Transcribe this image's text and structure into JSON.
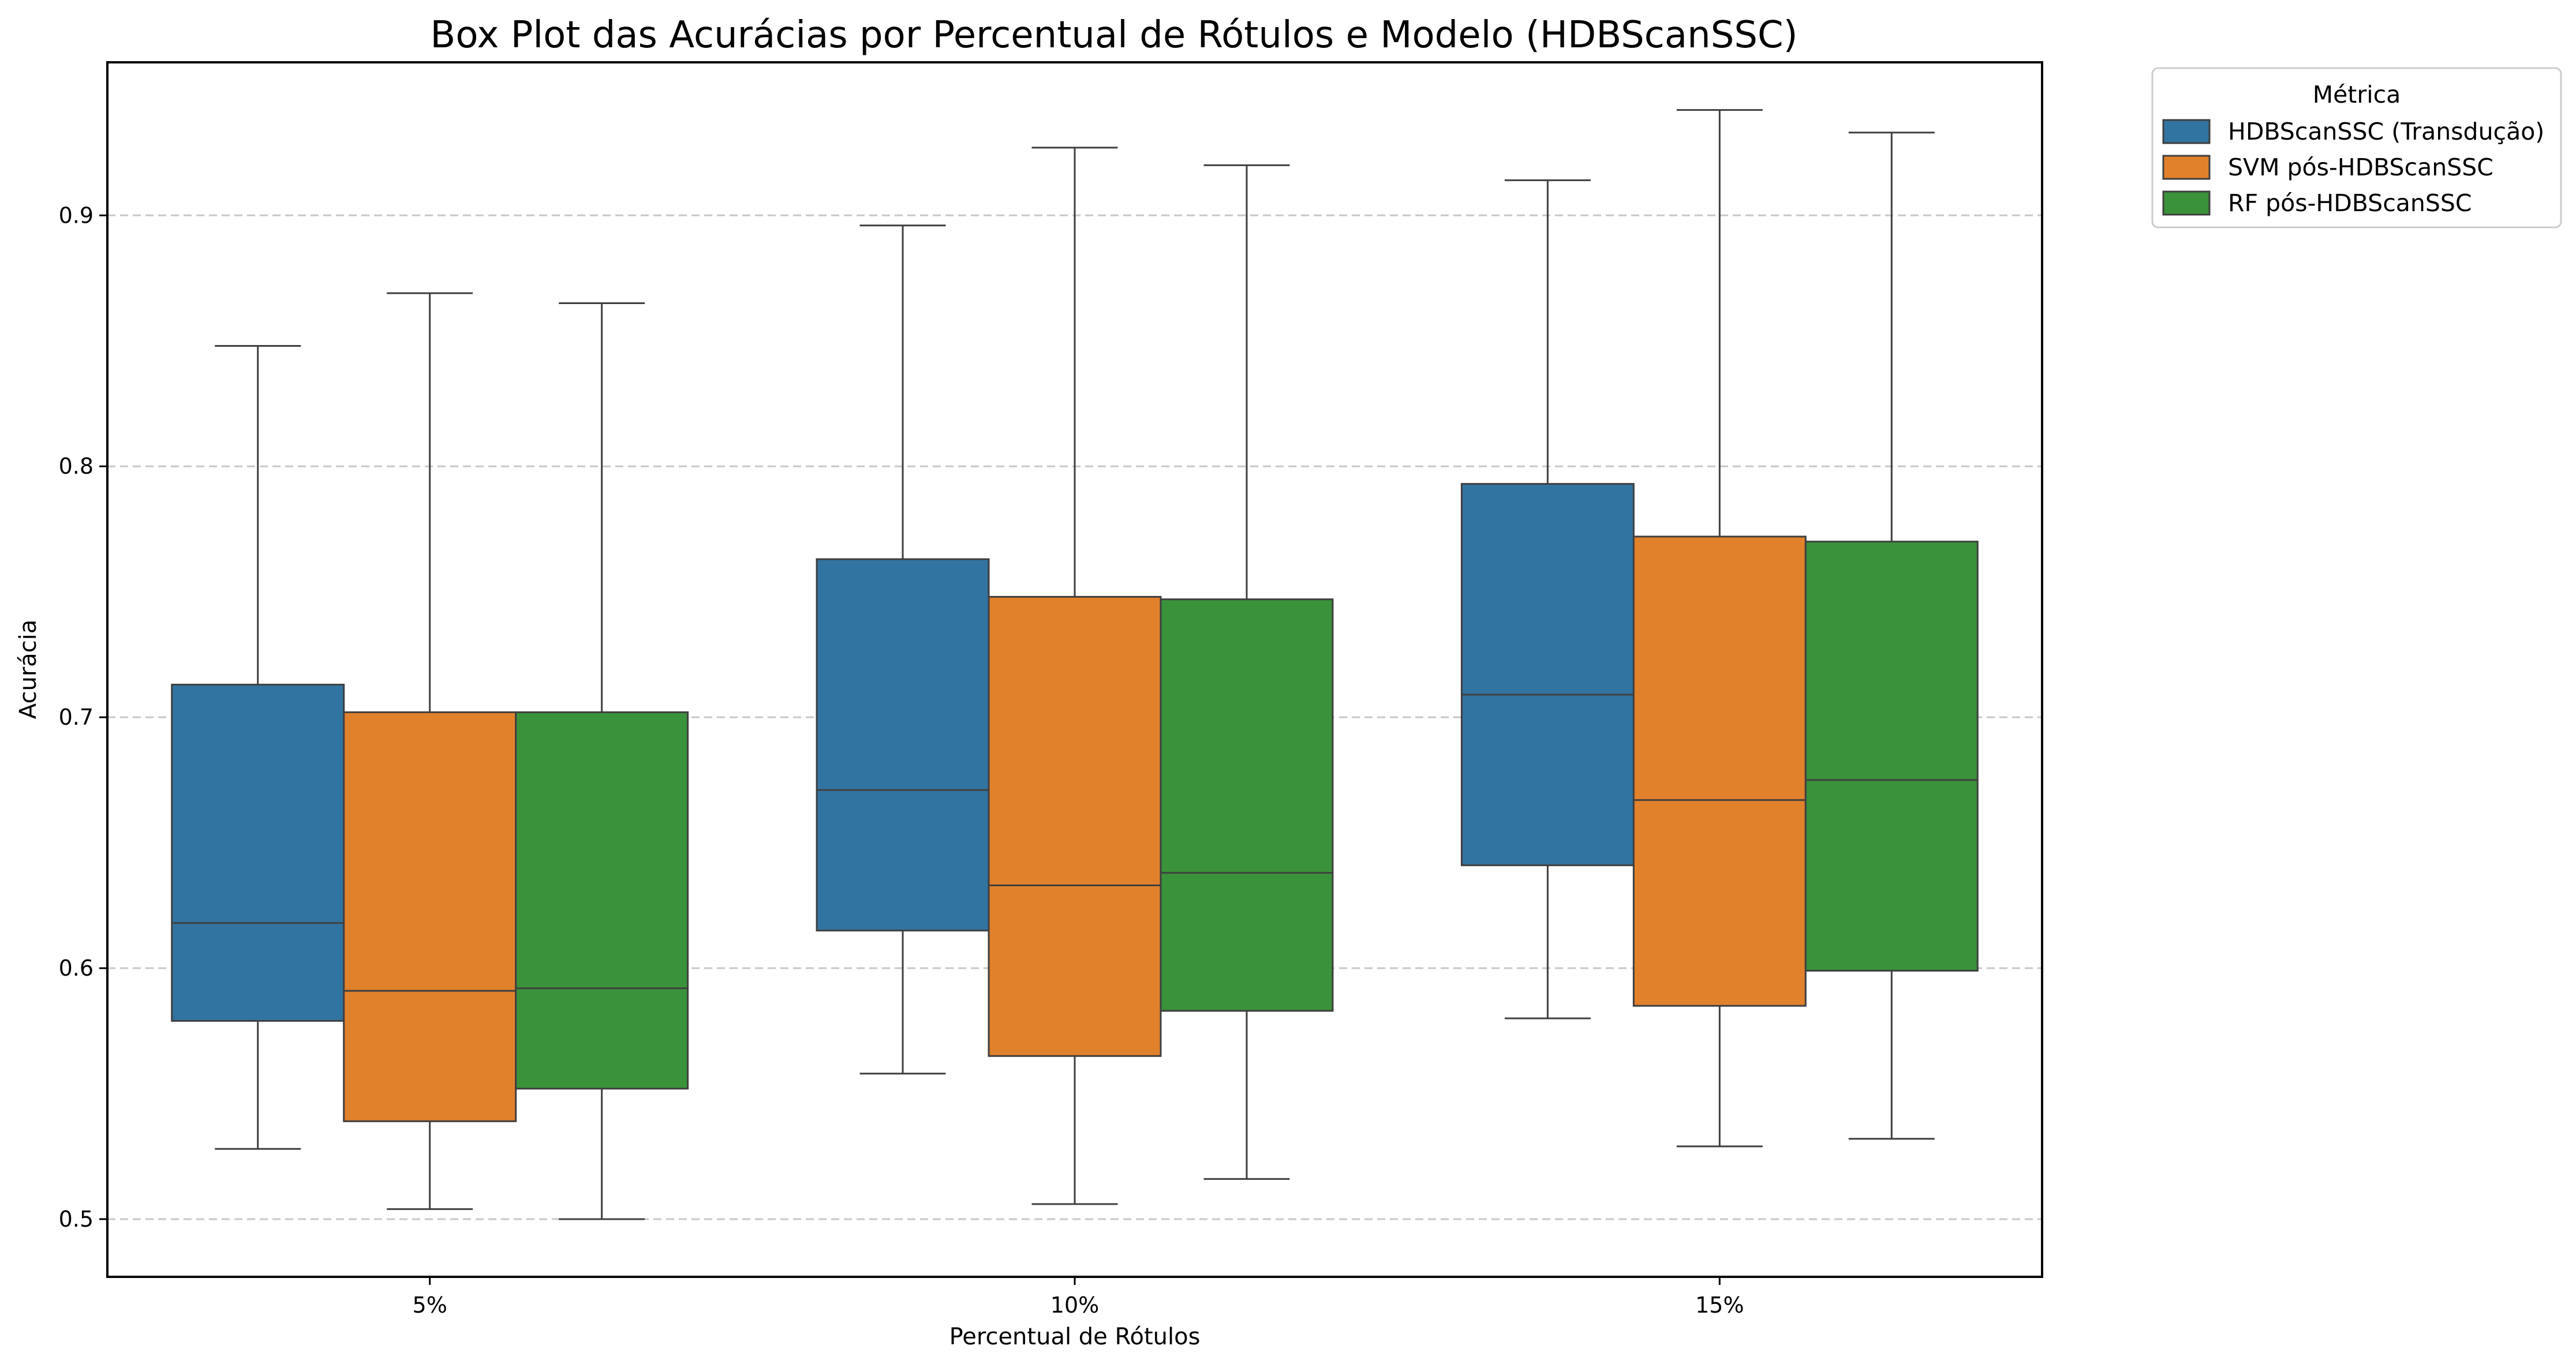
{
  "chart_data": {
    "type": "box",
    "title": "Box Plot das Acurácias por Percentual de Rótulos e Modelo (HDBScanSSC)",
    "xlabel": "Percentual de Rótulos",
    "ylabel": "Acurácia",
    "categories": [
      "5%",
      "10%",
      "15%"
    ],
    "y_ticks": [
      "0.5",
      "0.6",
      "0.7",
      "0.8",
      "0.9"
    ],
    "ylim": [
      0.477,
      0.961
    ],
    "grid": "y-dashed",
    "legend": {
      "title": "Métrica",
      "placement": "outside-top-right"
    },
    "series": [
      {
        "name": "HDBScanSSC (Transdução)",
        "color": "#3274a1",
        "boxes": [
          {
            "whisker_low": 0.528,
            "q1": 0.579,
            "median": 0.618,
            "q3": 0.713,
            "whisker_high": 0.848
          },
          {
            "whisker_low": 0.558,
            "q1": 0.615,
            "median": 0.671,
            "q3": 0.763,
            "whisker_high": 0.896
          },
          {
            "whisker_low": 0.58,
            "q1": 0.641,
            "median": 0.709,
            "q3": 0.793,
            "whisker_high": 0.914
          }
        ]
      },
      {
        "name": "SVM pós-HDBScanSSC",
        "color": "#e1812c",
        "boxes": [
          {
            "whisker_low": 0.504,
            "q1": 0.539,
            "median": 0.591,
            "q3": 0.702,
            "whisker_high": 0.869
          },
          {
            "whisker_low": 0.506,
            "q1": 0.565,
            "median": 0.633,
            "q3": 0.748,
            "whisker_high": 0.927
          },
          {
            "whisker_low": 0.529,
            "q1": 0.585,
            "median": 0.667,
            "q3": 0.772,
            "whisker_high": 0.942
          }
        ]
      },
      {
        "name": "RF pós-HDBScanSSC",
        "color": "#3a923a",
        "boxes": [
          {
            "whisker_low": 0.5,
            "q1": 0.552,
            "median": 0.592,
            "q3": 0.702,
            "whisker_high": 0.865
          },
          {
            "whisker_low": 0.516,
            "q1": 0.583,
            "median": 0.638,
            "q3": 0.747,
            "whisker_high": 0.92
          },
          {
            "whisker_low": 0.532,
            "q1": 0.599,
            "median": 0.675,
            "q3": 0.77,
            "whisker_high": 0.933
          }
        ]
      }
    ]
  }
}
